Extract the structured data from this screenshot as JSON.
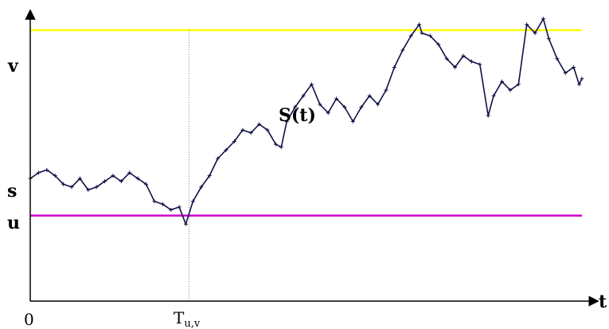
{
  "labels": {
    "v": "v",
    "s": "s",
    "u": "u",
    "origin": "0",
    "t_axis": "t",
    "hitting_time_main": "T",
    "hitting_time_sub": "u,v",
    "process": "S(t)"
  },
  "colors": {
    "upper_barrier": "#ffff00",
    "lower_barrier": "#cc00cc",
    "path": "#101048",
    "axis": "#000000",
    "guide": "#808080"
  },
  "chart_data": {
    "type": "line",
    "xlabel": "t",
    "ylabel": "",
    "ylim": [
      0,
      100
    ],
    "xlim": [
      0,
      100
    ],
    "barriers": {
      "u": 30,
      "s": 43,
      "v": 95
    },
    "hitting_time": 28.8,
    "series": [
      {
        "x": [
          0,
          1.5,
          3,
          4.5,
          6,
          7.5,
          9,
          10.5,
          12,
          13.5,
          15,
          16.5,
          18,
          19.5,
          21,
          22.5,
          24,
          25.5,
          27,
          28.2,
          29.5,
          31,
          32.5,
          34,
          35.5,
          37,
          38.5,
          40,
          41.5,
          43,
          44.5,
          45.5,
          46.5,
          48,
          49.5,
          51,
          52.5,
          54,
          55.5,
          57,
          58.5,
          60,
          61.5,
          63,
          64.5,
          66,
          67.5,
          69,
          70.5,
          71,
          72.5,
          74,
          75.5,
          77,
          78.5,
          80,
          81.5,
          83,
          84,
          85.5,
          87,
          88.5,
          90,
          91.5,
          93,
          94,
          95.5,
          97,
          98.5,
          99.5,
          100
        ],
        "y": [
          43,
          45,
          46,
          44,
          41,
          40,
          43,
          39,
          40,
          42,
          44,
          42,
          45,
          43,
          41,
          35,
          34,
          32,
          33,
          27,
          35,
          40,
          44,
          50,
          53,
          56,
          60,
          59,
          62,
          60,
          55,
          54,
          63,
          68,
          72,
          76,
          69,
          66,
          71,
          68,
          63,
          68,
          72,
          69,
          74,
          82,
          88,
          93,
          97,
          94,
          93,
          90,
          85,
          82,
          86,
          84,
          83,
          65,
          72,
          77,
          74,
          76,
          97,
          94,
          99,
          92,
          85,
          80,
          82,
          76,
          78
        ]
      }
    ]
  }
}
